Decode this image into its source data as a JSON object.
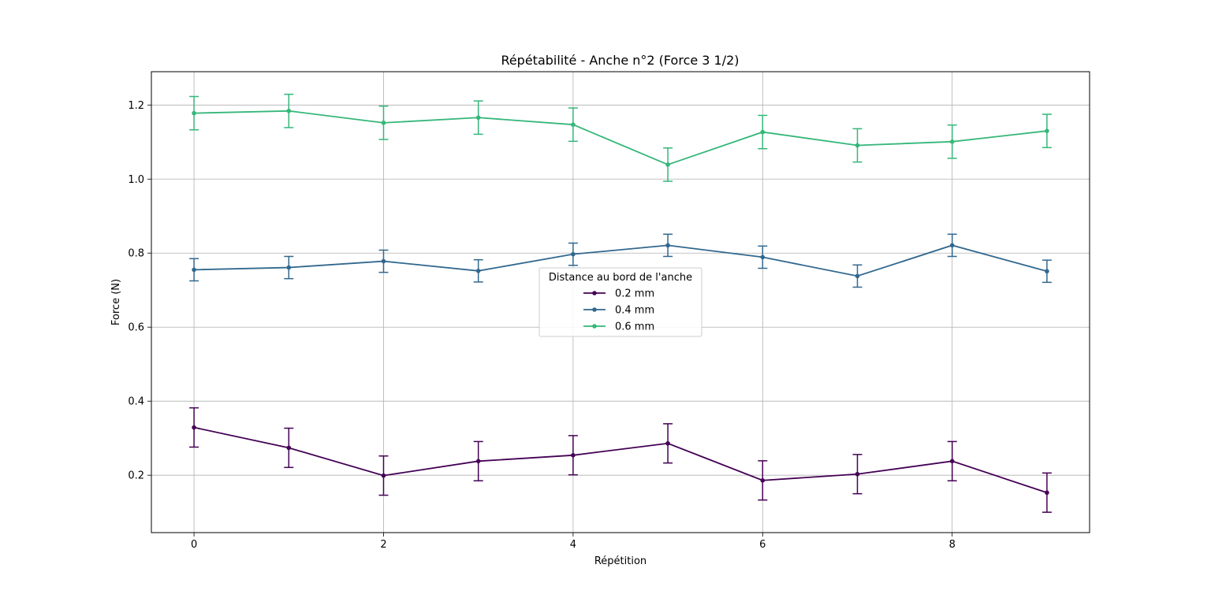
{
  "chart_data": {
    "type": "line",
    "title": "Répétabilité - Anche n°2 (Force 3 1/2)",
    "xlabel": "Répétition",
    "ylabel": "Force (N)",
    "xlim": [
      -0.45,
      9.45
    ],
    "ylim": [
      0.045,
      1.29
    ],
    "x_ticks": [
      0,
      2,
      4,
      6,
      8
    ],
    "y_ticks": [
      0.2,
      0.4,
      0.6,
      0.8,
      1.0,
      1.2
    ],
    "x_tick_labels": [
      "0",
      "2",
      "4",
      "6",
      "8"
    ],
    "y_tick_labels": [
      "0.2",
      "0.4",
      "0.6",
      "0.8",
      "1.0",
      "1.2"
    ],
    "grid": true,
    "legend": {
      "title": "Distance au bord de l'anche",
      "placement": "center"
    },
    "x": [
      0,
      1,
      2,
      3,
      4,
      5,
      6,
      7,
      8,
      9
    ],
    "series": [
      {
        "name": "0.2 mm",
        "color": "#440154",
        "values": [
          0.329,
          0.274,
          0.199,
          0.238,
          0.254,
          0.286,
          0.186,
          0.203,
          0.238,
          0.153
        ],
        "errors": [
          0.053,
          0.053,
          0.053,
          0.053,
          0.053,
          0.053,
          0.053,
          0.053,
          0.053,
          0.053
        ]
      },
      {
        "name": "0.4 mm",
        "color": "#31688e",
        "values": [
          0.755,
          0.761,
          0.778,
          0.752,
          0.797,
          0.821,
          0.789,
          0.738,
          0.821,
          0.751
        ],
        "errors": [
          0.03,
          0.03,
          0.03,
          0.03,
          0.03,
          0.03,
          0.03,
          0.03,
          0.03,
          0.03
        ]
      },
      {
        "name": "0.6 mm",
        "color": "#35b779",
        "values": [
          1.178,
          1.184,
          1.152,
          1.166,
          1.147,
          1.039,
          1.127,
          1.091,
          1.101,
          1.13
        ],
        "errors": [
          0.045,
          0.045,
          0.045,
          0.045,
          0.045,
          0.045,
          0.045,
          0.045,
          0.045,
          0.045
        ]
      }
    ]
  }
}
